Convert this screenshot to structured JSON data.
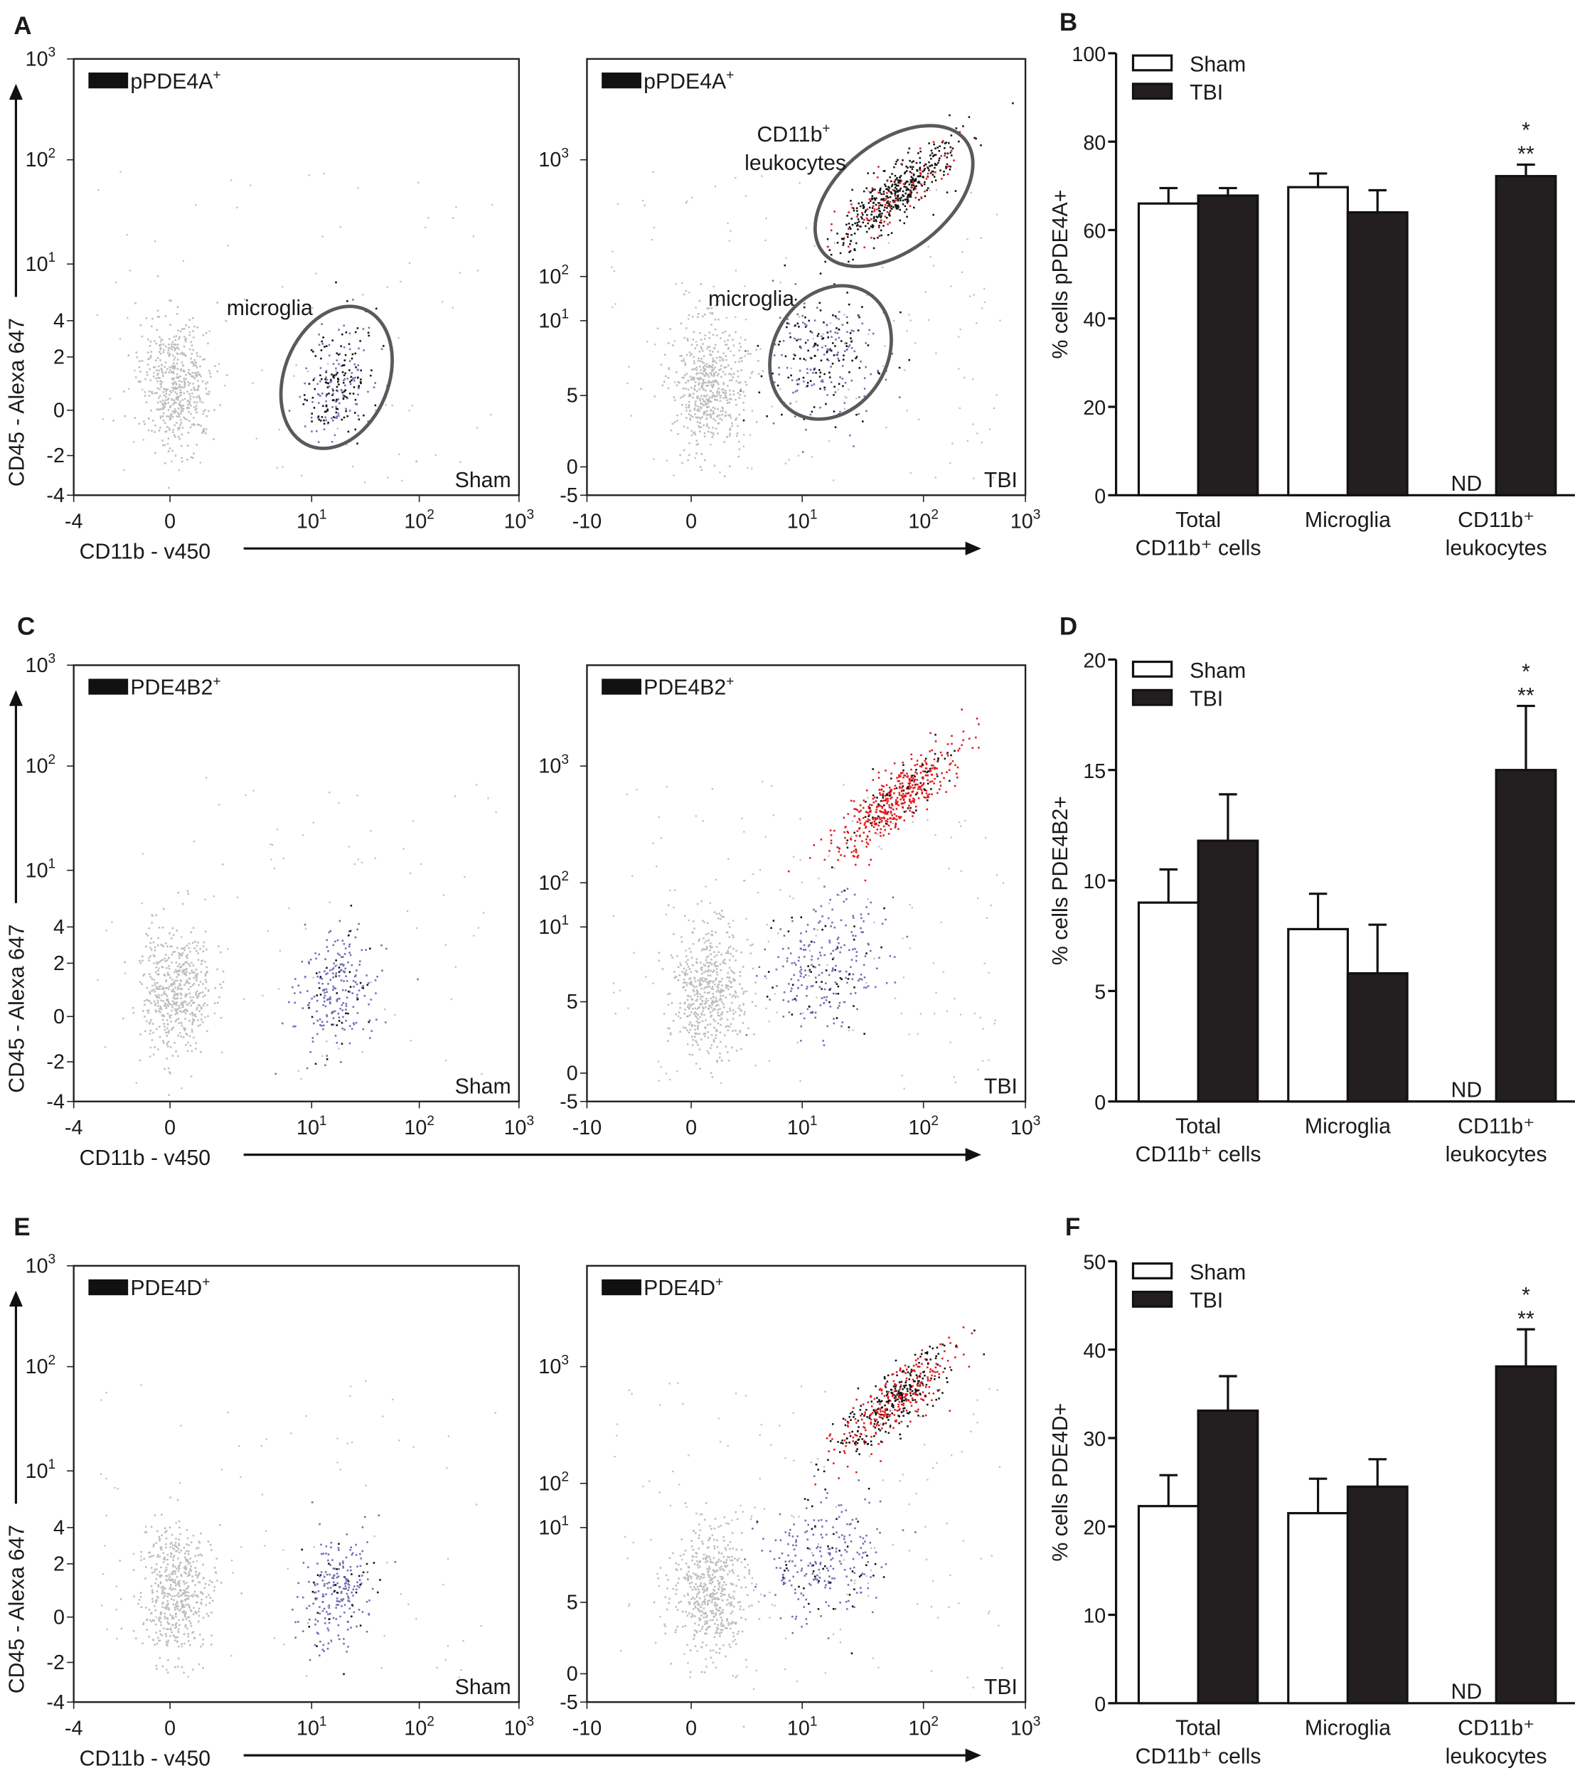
{
  "panel_letters": [
    "A",
    "B",
    "C",
    "D",
    "E",
    "F"
  ],
  "flow": {
    "x_axis_label": "CD11b - v450",
    "y_axis_label": "CD45 - Alexa 647",
    "groups": [
      "Sham",
      "TBI"
    ],
    "sham_x_ticks": [
      {
        "t": "-4",
        "sup": ""
      },
      {
        "t": "0",
        "sup": ""
      },
      {
        "t": "10",
        "sup": "1"
      },
      {
        "t": "10",
        "sup": "2"
      },
      {
        "t": "10",
        "sup": "3"
      }
    ],
    "tbi_x_ticks": [
      {
        "t": "-10",
        "sup": ""
      },
      {
        "t": "0",
        "sup": ""
      },
      {
        "t": "10",
        "sup": "1"
      },
      {
        "t": "10",
        "sup": "2"
      },
      {
        "t": "10",
        "sup": "3"
      }
    ],
    "sham_y_ticks": [
      {
        "t": "-4",
        "sup": ""
      },
      {
        "t": "-2",
        "sup": ""
      },
      {
        "t": "0",
        "sup": ""
      },
      {
        "t": "2",
        "sup": ""
      },
      {
        "t": "4",
        "sup": ""
      },
      {
        "t": "10",
        "sup": "1"
      },
      {
        "t": "10",
        "sup": "2"
      },
      {
        "t": "10",
        "sup": "3"
      }
    ],
    "tbi_y_ticks": [
      {
        "t": "-5",
        "sup": ""
      },
      {
        "t": "0",
        "sup": ""
      },
      {
        "t": "5",
        "sup": ""
      },
      {
        "t": "10",
        "sup": "1"
      },
      {
        "t": "10",
        "sup": "2"
      },
      {
        "t": "10",
        "sup": "3"
      }
    ],
    "rows": [
      {
        "marker": "pPDE4A",
        "sup": "+",
        "gates": true
      },
      {
        "marker": "PDE4B2",
        "sup": "+",
        "gates": false
      },
      {
        "marker": "PDE4D",
        "sup": "+",
        "gates": false
      }
    ],
    "gate_labels": {
      "microglia": "microglia",
      "leuk_main": "CD11b",
      "leuk_sup": "+",
      "leuk_line2": "leukocytes"
    },
    "colors": {
      "background_events": "#bdbdbd",
      "microglia": "#6f6fb5",
      "leukocytes": "#e0191c",
      "positive": "#111111",
      "gate": "#5a5a5a"
    }
  },
  "chart_data": [
    {
      "type": "bar",
      "ylabel": "% cells pPDE4A+",
      "ylim": [
        0,
        100
      ],
      "yticks": [
        0,
        20,
        40,
        60,
        80,
        100
      ],
      "categories": [
        [
          "Total",
          "CD11b⁺ cells"
        ],
        [
          "Microglia"
        ],
        [
          "CD11b⁺",
          "leukocytes"
        ]
      ],
      "series": [
        {
          "name": "Sham",
          "color": "#ffffff",
          "values": [
            66.0,
            69.7,
            null
          ],
          "errors": [
            3.5,
            3.1,
            null
          ]
        },
        {
          "name": "TBI",
          "color": "#231f20",
          "values": [
            67.8,
            64.0,
            72.2
          ],
          "errors": [
            1.7,
            5.0,
            2.6
          ]
        }
      ],
      "nd_label": "ND",
      "significance": [
        "",
        "",
        "***"
      ],
      "legend": "top-left"
    },
    {
      "type": "bar",
      "ylabel": "% cells PDE4B2+",
      "ylim": [
        0,
        20
      ],
      "yticks": [
        0,
        5,
        10,
        15,
        20
      ],
      "categories": [
        [
          "Total",
          "CD11b⁺ cells"
        ],
        [
          "Microglia"
        ],
        [
          "CD11b⁺",
          "leukocytes"
        ]
      ],
      "series": [
        {
          "name": "Sham",
          "color": "#ffffff",
          "values": [
            9.0,
            7.8,
            null
          ],
          "errors": [
            1.5,
            1.6,
            null
          ]
        },
        {
          "name": "TBI",
          "color": "#231f20",
          "values": [
            11.8,
            5.8,
            15.0
          ],
          "errors": [
            2.1,
            2.2,
            2.9
          ]
        }
      ],
      "nd_label": "ND",
      "significance": [
        "",
        "",
        "***"
      ],
      "legend": "top-left"
    },
    {
      "type": "bar",
      "ylabel": "% cells PDE4D+",
      "ylim": [
        0,
        50
      ],
      "yticks": [
        0,
        10,
        20,
        30,
        40,
        50
      ],
      "categories": [
        [
          "Total",
          "CD11b⁺ cells"
        ],
        [
          "Microglia"
        ],
        [
          "CD11b⁺",
          "leukocytes"
        ]
      ],
      "series": [
        {
          "name": "Sham",
          "color": "#ffffff",
          "values": [
            22.3,
            21.5,
            null
          ],
          "errors": [
            3.5,
            3.9,
            null
          ]
        },
        {
          "name": "TBI",
          "color": "#231f20",
          "values": [
            33.1,
            24.5,
            38.1
          ],
          "errors": [
            3.9,
            3.1,
            4.2
          ]
        }
      ],
      "nd_label": "ND",
      "significance": [
        "",
        "",
        "***"
      ],
      "legend": "top-left"
    }
  ]
}
